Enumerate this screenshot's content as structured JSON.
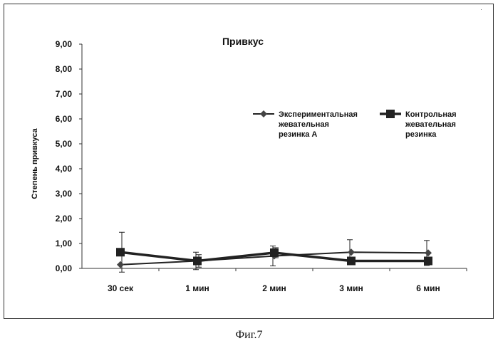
{
  "colors": {
    "line": "#222222",
    "axis": "#333333",
    "text": "#111111"
  },
  "caption": "Фиг.7",
  "chart_data": {
    "type": "line",
    "title": "Привкус",
    "xlabel": "",
    "ylabel": "Степень привкуса",
    "ylim": [
      0,
      9
    ],
    "ytick_labels": [
      "0,00",
      "1,00",
      "2,00",
      "3,00",
      "4,00",
      "5,00",
      "6,00",
      "7,00",
      "8,00",
      "9,00"
    ],
    "categories": [
      "30 сек",
      "1 мин",
      "2 мин",
      "3 мин",
      "6 мин"
    ],
    "grid": false,
    "legend_position": "top-right",
    "series": [
      {
        "name": "Экспериментальная жевательная резинка А",
        "name_lines": [
          "Экспериментальная",
          "жевательная",
          "резинка А"
        ],
        "marker": "diamond",
        "values": [
          0.15,
          0.3,
          0.5,
          0.65,
          0.62
        ],
        "error": [
          0.0,
          0.35,
          0.4,
          0.5,
          0.5
        ]
      },
      {
        "name": "Контрольная жевательная резинка",
        "name_lines": [
          "Контрольная",
          "жевательная",
          "резинка"
        ],
        "marker": "square",
        "values": [
          0.65,
          0.3,
          0.63,
          0.3,
          0.3
        ],
        "error": [
          0.8,
          0.25,
          0.2,
          0.15,
          0.15
        ]
      }
    ]
  }
}
